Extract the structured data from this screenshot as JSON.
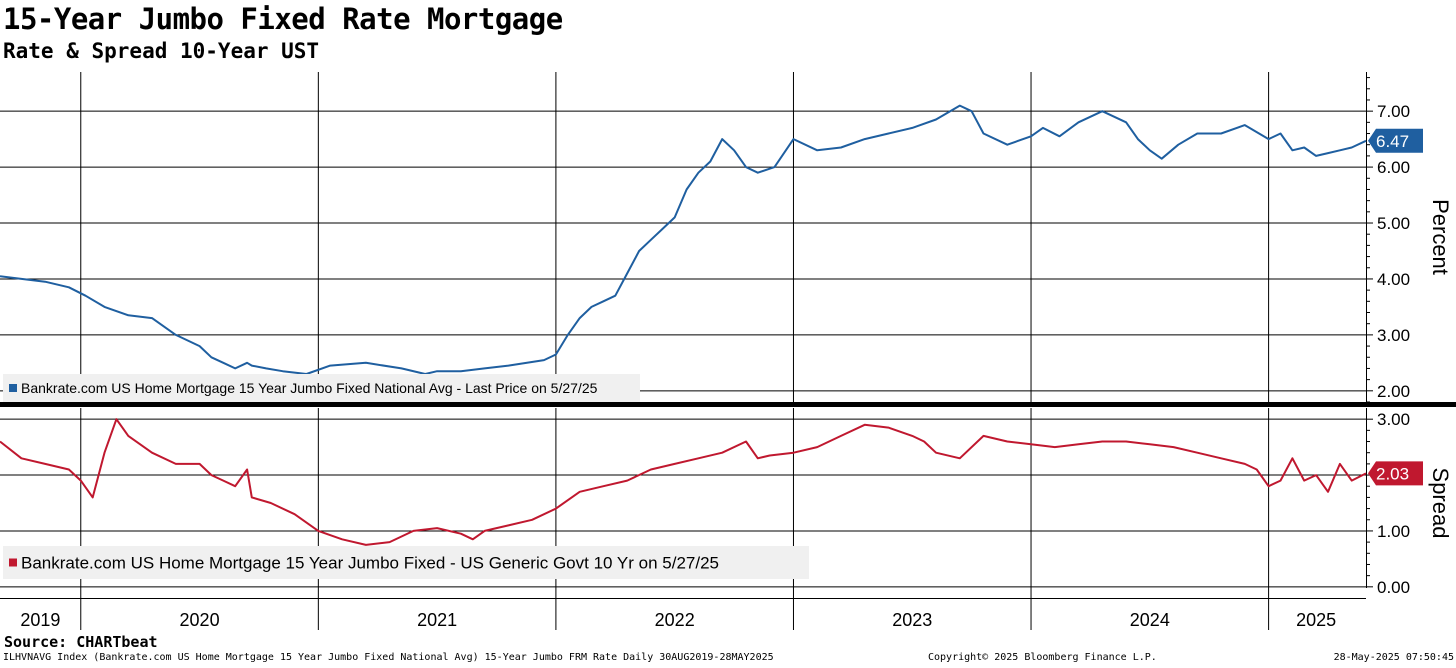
{
  "header": {
    "title": "15-Year Jumbo Fixed Rate Mortgage",
    "subtitle": "Rate & Spread 10-Year UST"
  },
  "footer": {
    "source": "Source: CHARTbeat",
    "description": "ILHVNAVG Index (Bankrate.com US Home Mortgage 15 Year Jumbo Fixed National Avg) 15-Year Jumbo FRM Rate  Daily 30AUG2019-28MAY2025",
    "copyright": "Copyright© 2025 Bloomberg Finance L.P.",
    "timestamp": "28-May-2025 07:50:45"
  },
  "chart_data": [
    {
      "type": "line",
      "panel": "top",
      "ylabel": "Percent",
      "ylim": [
        1.8,
        7.7
      ],
      "yticks": [
        "2.00",
        "3.00",
        "4.00",
        "5.00",
        "6.00",
        "7.00"
      ],
      "xlim": [
        2019.66,
        2025.41
      ],
      "grid": true,
      "color": "#1f5fa0",
      "legend": "Bankrate.com US Home Mortgage 15 Year Jumbo Fixed National Avg - Last Price on 5/27/25",
      "legend_position": "bottom-left",
      "last_value_label": "6.47",
      "series": [
        {
          "x": [
            2019.66,
            2019.75,
            2019.85,
            2019.95,
            2020.02,
            2020.1,
            2020.2,
            2020.3,
            2020.4,
            2020.5,
            2020.55,
            2020.6,
            2020.65,
            2020.7,
            2020.72,
            2020.78,
            2020.85,
            2020.95,
            2021.05,
            2021.2,
            2021.35,
            2021.45,
            2021.5,
            2021.6,
            2021.7,
            2021.8,
            2021.95,
            2022.0,
            2022.05,
            2022.1,
            2022.15,
            2022.2,
            2022.25,
            2022.3,
            2022.35,
            2022.4,
            2022.45,
            2022.5,
            2022.55,
            2022.6,
            2022.65,
            2022.7,
            2022.75,
            2022.8,
            2022.85,
            2022.92,
            2023.0,
            2023.1,
            2023.2,
            2023.3,
            2023.4,
            2023.5,
            2023.6,
            2023.7,
            2023.75,
            2023.8,
            2023.9,
            2024.0,
            2024.05,
            2024.12,
            2024.2,
            2024.3,
            2024.4,
            2024.45,
            2024.5,
            2024.55,
            2024.62,
            2024.7,
            2024.8,
            2024.9,
            2025.0,
            2025.05,
            2025.1,
            2025.15,
            2025.2,
            2025.25,
            2025.3,
            2025.35,
            2025.41
          ],
          "y": [
            4.05,
            4.0,
            3.95,
            3.85,
            3.7,
            3.5,
            3.35,
            3.3,
            3.0,
            2.8,
            2.6,
            2.5,
            2.4,
            2.5,
            2.45,
            2.4,
            2.35,
            2.3,
            2.45,
            2.5,
            2.4,
            2.3,
            2.35,
            2.35,
            2.4,
            2.45,
            2.55,
            2.65,
            3.0,
            3.3,
            3.5,
            3.6,
            3.7,
            4.1,
            4.5,
            4.7,
            4.9,
            5.1,
            5.6,
            5.9,
            6.1,
            6.5,
            6.3,
            6.0,
            5.9,
            6.0,
            6.5,
            6.3,
            6.35,
            6.5,
            6.6,
            6.7,
            6.85,
            7.1,
            7.0,
            6.6,
            6.4,
            6.55,
            6.7,
            6.55,
            6.8,
            7.0,
            6.8,
            6.5,
            6.3,
            6.15,
            6.4,
            6.6,
            6.6,
            6.75,
            6.5,
            6.6,
            6.3,
            6.35,
            6.2,
            6.25,
            6.3,
            6.35,
            6.47
          ]
        }
      ]
    },
    {
      "type": "line",
      "panel": "bottom",
      "ylabel": "Spread",
      "ylim": [
        -0.2,
        3.2
      ],
      "yticks": [
        "0.00",
        "1.00",
        "2.00",
        "3.00"
      ],
      "xlim": [
        2019.66,
        2025.41
      ],
      "grid": true,
      "color": "#c0182f",
      "legend": "Bankrate.com US Home Mortgage 15 Year Jumbo Fixed - US Generic Govt 10 Yr on 5/27/25",
      "legend_position": "bottom-left",
      "last_value_label": "2.03",
      "series": [
        {
          "x": [
            2019.66,
            2019.75,
            2019.85,
            2019.95,
            2020.0,
            2020.05,
            2020.1,
            2020.15,
            2020.2,
            2020.3,
            2020.4,
            2020.45,
            2020.5,
            2020.55,
            2020.6,
            2020.65,
            2020.7,
            2020.72,
            2020.8,
            2020.9,
            2021.0,
            2021.1,
            2021.2,
            2021.3,
            2021.4,
            2021.5,
            2021.6,
            2021.65,
            2021.7,
            2021.8,
            2021.9,
            2022.0,
            2022.1,
            2022.2,
            2022.3,
            2022.4,
            2022.5,
            2022.6,
            2022.7,
            2022.8,
            2022.85,
            2022.9,
            2023.0,
            2023.1,
            2023.2,
            2023.3,
            2023.4,
            2023.5,
            2023.55,
            2023.6,
            2023.7,
            2023.8,
            2023.9,
            2024.0,
            2024.1,
            2024.2,
            2024.3,
            2024.4,
            2024.5,
            2024.6,
            2024.7,
            2024.8,
            2024.9,
            2024.95,
            2025.0,
            2025.05,
            2025.1,
            2025.15,
            2025.2,
            2025.25,
            2025.3,
            2025.35,
            2025.41
          ],
          "y": [
            2.6,
            2.3,
            2.2,
            2.1,
            1.9,
            1.6,
            2.4,
            3.0,
            2.7,
            2.4,
            2.2,
            2.2,
            2.2,
            2.0,
            1.9,
            1.8,
            2.1,
            1.6,
            1.5,
            1.3,
            1.0,
            0.85,
            0.75,
            0.8,
            1.0,
            1.05,
            0.95,
            0.85,
            1.0,
            1.1,
            1.2,
            1.4,
            1.7,
            1.8,
            1.9,
            2.1,
            2.2,
            2.3,
            2.4,
            2.6,
            2.3,
            2.35,
            2.4,
            2.5,
            2.7,
            2.9,
            2.85,
            2.7,
            2.6,
            2.4,
            2.3,
            2.7,
            2.6,
            2.55,
            2.5,
            2.55,
            2.6,
            2.6,
            2.55,
            2.5,
            2.4,
            2.3,
            2.2,
            2.1,
            1.8,
            1.9,
            2.3,
            1.9,
            2.0,
            1.7,
            2.2,
            1.9,
            2.03
          ]
        }
      ]
    }
  ],
  "x_axis": {
    "tick_labels": [
      {
        "label": "2019",
        "x": 2019.83
      },
      {
        "label": "2020",
        "x": 2020.5
      },
      {
        "label": "2021",
        "x": 2021.5
      },
      {
        "label": "2022",
        "x": 2022.5
      },
      {
        "label": "2023",
        "x": 2023.5
      },
      {
        "label": "2024",
        "x": 2024.5
      },
      {
        "label": "2025",
        "x": 2025.2
      }
    ],
    "year_boundaries": [
      2020,
      2021,
      2022,
      2023,
      2024,
      2025
    ]
  }
}
